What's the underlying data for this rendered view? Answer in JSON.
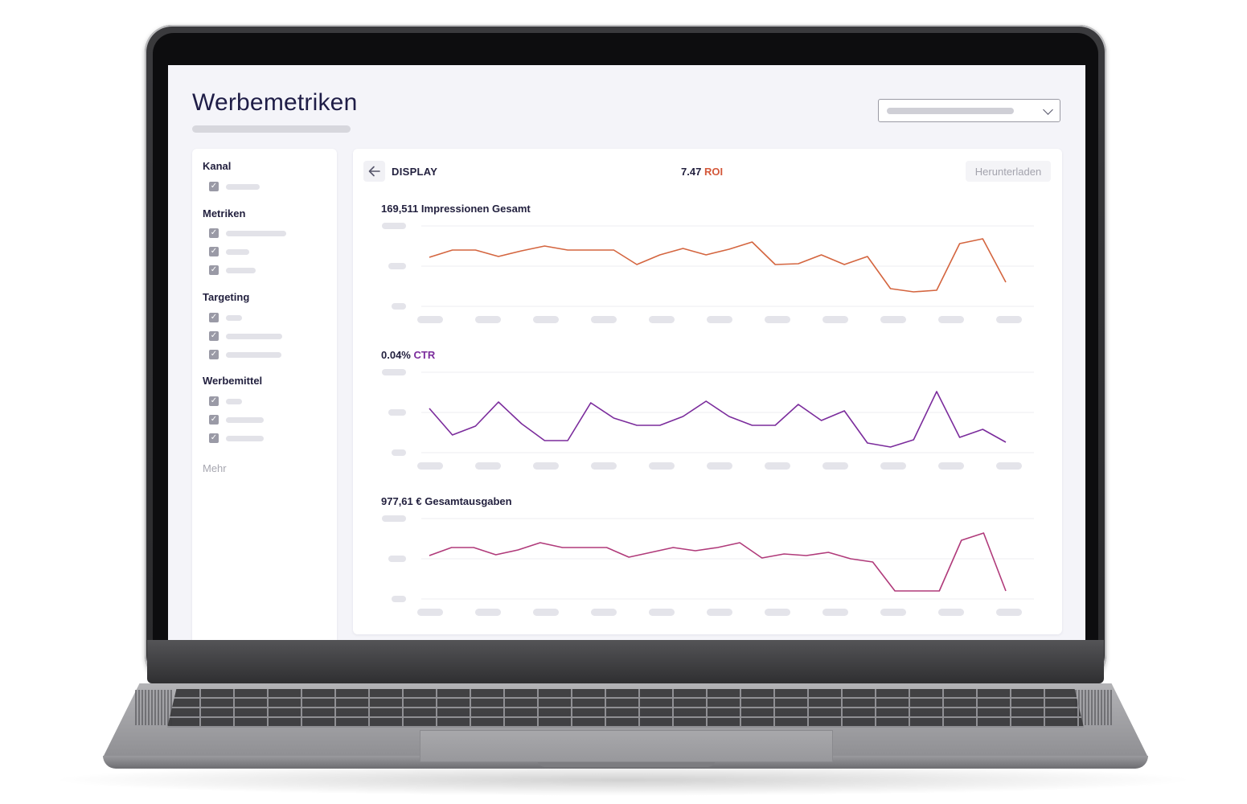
{
  "page": {
    "title": "Werbemetriken"
  },
  "sidebar": {
    "groups": [
      {
        "title": "Kanal",
        "items": [
          {
            "checked": true
          }
        ]
      },
      {
        "title": "Metriken",
        "items": [
          {
            "checked": true
          },
          {
            "checked": true
          },
          {
            "checked": true
          }
        ]
      },
      {
        "title": "Targeting",
        "items": [
          {
            "checked": true
          },
          {
            "checked": true
          },
          {
            "checked": true
          }
        ]
      },
      {
        "title": "Werbemittel",
        "items": [
          {
            "checked": true
          },
          {
            "checked": true
          },
          {
            "checked": true
          }
        ]
      }
    ],
    "more_label": "Mehr",
    "checkbox_glyph": "✓"
  },
  "panel": {
    "channel": "DISPLAY",
    "roi_value": "7.47",
    "roi_label": "ROI",
    "download_label": "Herunterladen",
    "back_icon": "arrow-left-icon"
  },
  "colors": {
    "roi": "#d4583a",
    "impressions": "#d4653f",
    "ctr": "#7b2c9c",
    "spend": "#b03a7a"
  },
  "chart_data": [
    {
      "type": "line",
      "title_value": "169,511",
      "title_text": "Impressionen Gesamt",
      "ylim": [
        0,
        1
      ],
      "grid": true,
      "series": [
        {
          "values": [
            0.61,
            0.7,
            0.7,
            0.62,
            0.69,
            0.75,
            0.7,
            0.7,
            0.7,
            0.52,
            0.64,
            0.72,
            0.64,
            0.71,
            0.8,
            0.52,
            0.53,
            0.64,
            0.52,
            0.62,
            0.22,
            0.18,
            0.2,
            0.78,
            0.84,
            0.3
          ]
        }
      ]
    },
    {
      "type": "line",
      "title_value": "0.04%",
      "title_text": "CTR",
      "ylim": [
        0,
        1
      ],
      "grid": true,
      "series": [
        {
          "values": [
            0.55,
            0.22,
            0.33,
            0.63,
            0.36,
            0.15,
            0.15,
            0.62,
            0.43,
            0.34,
            0.34,
            0.45,
            0.64,
            0.45,
            0.34,
            0.34,
            0.6,
            0.4,
            0.52,
            0.12,
            0.07,
            0.16,
            0.76,
            0.19,
            0.29,
            0.13
          ]
        }
      ]
    },
    {
      "type": "line",
      "title_value": "977,61 €",
      "title_text": "Gesamtausgaben",
      "ylim": [
        0,
        1
      ],
      "grid": true,
      "series": [
        {
          "values": [
            0.54,
            0.64,
            0.64,
            0.55,
            0.61,
            0.7,
            0.64,
            0.64,
            0.64,
            0.52,
            0.58,
            0.64,
            0.6,
            0.64,
            0.7,
            0.51,
            0.56,
            0.54,
            0.58,
            0.5,
            0.46,
            0.1,
            0.1,
            0.1,
            0.73,
            0.82,
            0.1
          ]
        }
      ]
    }
  ]
}
